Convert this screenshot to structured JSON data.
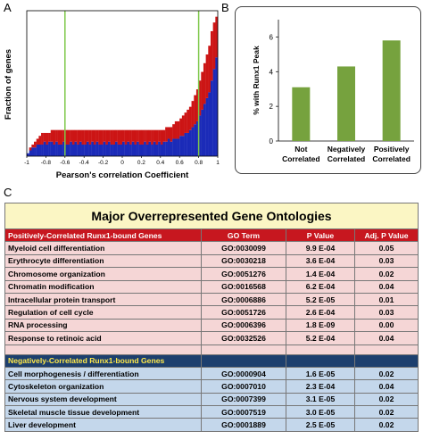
{
  "panels": {
    "a": "A",
    "b": "B",
    "c": "C"
  },
  "chart_data": [
    {
      "type": "bar",
      "title": "",
      "xlabel": "Pearson's correlation Coefficient",
      "ylabel": "Fraction of genes",
      "xlim": [
        -1,
        1
      ],
      "x_ticks": [
        "-1",
        "-0.8",
        "-0.6",
        "-0.4",
        "-0.2",
        "0",
        "0.2",
        "0.4",
        "0.6",
        "0.8",
        "1"
      ],
      "stacked": true,
      "series": [
        {
          "name": "",
          "color": "#1b2bb8",
          "values": [
            0.5,
            1,
            1.5,
            1.5,
            2,
            2,
            2,
            2.5,
            2,
            2.5,
            2.5,
            2,
            2.5,
            2,
            2,
            2.5,
            2,
            2,
            2.5,
            2,
            2.5,
            2,
            2.5,
            2,
            2,
            2.5,
            2,
            2.5,
            2,
            2.5,
            2,
            2,
            2.5,
            2,
            2.5,
            2,
            2,
            2.5,
            2,
            2,
            2.5,
            2,
            2.5,
            2,
            2.5,
            2,
            2.5,
            2,
            2,
            2.5,
            2,
            2.5,
            2,
            2.5,
            2,
            2.5,
            2,
            2.5,
            2.5,
            3,
            2.5,
            3,
            3,
            3,
            3.5,
            3.5,
            4,
            4,
            4.5,
            5,
            5.5,
            6,
            7,
            8,
            9,
            10,
            11,
            13,
            15,
            17
          ]
        },
        {
          "name": "",
          "color": "#cc1515",
          "values": [
            0,
            0.5,
            0.5,
            1,
            1,
            1.5,
            2,
            1.5,
            2,
            1.5,
            2,
            2.5,
            2,
            2.5,
            2.5,
            2,
            2.5,
            2.5,
            2,
            2.5,
            2,
            2.5,
            2,
            2.5,
            2.5,
            2,
            2.5,
            2,
            2.5,
            2,
            2.5,
            2.5,
            2,
            2.5,
            2,
            2.5,
            2.5,
            2,
            2.5,
            2.5,
            2,
            2.5,
            2,
            2.5,
            2,
            2.5,
            2,
            2.5,
            2.5,
            2,
            2.5,
            2,
            2.5,
            2,
            2.5,
            2,
            2.5,
            2,
            2.5,
            2,
            2.5,
            2.5,
            3,
            3,
            3,
            3.5,
            3.5,
            4,
            4,
            4.5,
            5,
            5.5,
            6,
            6.5,
            7,
            7.5,
            8,
            8.5,
            8,
            7
          ]
        }
      ],
      "vlines": [
        -0.6,
        0.8
      ],
      "vline_color": "#7ec84a"
    },
    {
      "type": "bar",
      "title": "",
      "xlabel": "",
      "ylabel": "% with Runx1 Peak",
      "categories": [
        "Not Correlated",
        "Negatively Correlated",
        "Positively Correlated"
      ],
      "category_lines": [
        [
          "Not",
          "Correlated"
        ],
        [
          "Negatively",
          "Correlated"
        ],
        [
          "Positively",
          "Correlated"
        ]
      ],
      "values": [
        3.1,
        4.3,
        5.8
      ],
      "ylim": [
        0,
        7
      ],
      "y_ticks": [
        "0",
        "2",
        "4",
        "6"
      ],
      "bar_color": "#76a23e"
    }
  ],
  "table": {
    "title": "Major Overrepresented Gene Ontologies",
    "positive": {
      "header": [
        "Positively-Correlated Runx1-bound Genes",
        "GO Term",
        "P Value",
        "Adj. P Value"
      ],
      "rows": [
        [
          "Myeloid cell differentiation",
          "GO:0030099",
          "9.9 E-04",
          "0.05"
        ],
        [
          "Erythrocyte differentiation",
          "GO:0030218",
          "3.6 E-04",
          "0.03"
        ],
        [
          "Chromosome organization",
          "GO:0051276",
          "1.4 E-04",
          "0.02"
        ],
        [
          "Chromatin modification",
          "GO:0016568",
          "6.2 E-04",
          "0.04"
        ],
        [
          "Intracellular protein transport",
          "GO:0006886",
          "5.2 E-05",
          "0.01"
        ],
        [
          "Regulation of cell cycle",
          "GO:0051726",
          "2.6 E-04",
          "0.03"
        ],
        [
          "RNA processing",
          "GO:0006396",
          "1.8 E-09",
          "0.00"
        ],
        [
          "Response to retinoic acid",
          "GO:0032526",
          "5.2 E-04",
          "0.04"
        ]
      ]
    },
    "negative": {
      "header": "Negatively-Correlated Runx1-bound Genes",
      "rows": [
        [
          "Cell morphogenesis / differentiation",
          "GO:0000904",
          "1.6 E-05",
          "0.02"
        ],
        [
          "Cytoskeleton organization",
          "GO:0007010",
          "2.3 E-04",
          "0.04"
        ],
        [
          "Nervous system development",
          "GO:0007399",
          "3.1 E-05",
          "0.02"
        ],
        [
          "Skeletal muscle tissue development",
          "GO:0007519",
          "3.0 E-05",
          "0.02"
        ],
        [
          "Liver development",
          "GO:0001889",
          "2.5 E-05",
          "0.02"
        ]
      ]
    }
  }
}
